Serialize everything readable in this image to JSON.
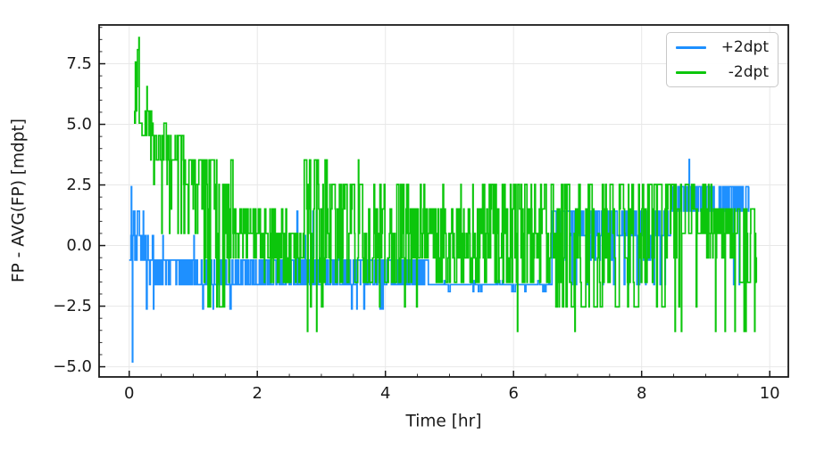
{
  "chart_data": {
    "type": "line",
    "title": "",
    "xlabel": "Time [hr]",
    "ylabel": "FP - AVG(FP) [mdpt]",
    "xlim": [
      -0.47,
      10.29
    ],
    "ylim": [
      -5.42,
      9.1
    ],
    "xticks": {
      "values": [
        0,
        2,
        4,
        6,
        8,
        10
      ],
      "labels": [
        "0",
        "2",
        "4",
        "6",
        "8",
        "10"
      ]
    },
    "yticks": {
      "values": [
        -5,
        -2.5,
        0,
        2.5,
        5,
        7.5
      ],
      "labels": [
        "−5.0",
        "−2.5",
        "0.0",
        "2.5",
        "5.0",
        "7.5"
      ]
    },
    "minor_tick_step": {
      "x": 0.5,
      "y": 0.5
    },
    "grid": true,
    "legend_position": "upper right",
    "colors": {
      "grid": "#e8e8e8",
      "spine": "#1a1a1a",
      "text": "#1a1a1a",
      "legend_border": "#c8c8c8"
    },
    "series": [
      {
        "name": "+2dpt",
        "color": "#1E90FF",
        "quant": {
          "ref": -0.6,
          "step": 1.01
        },
        "segments": [
          {
            "t0": 0.0,
            "t1": 0.05,
            "lo": -0.6,
            "hi": 0.41,
            "d": 1
          },
          {
            "t0": 0.05,
            "t1": 0.17,
            "lo": -0.6,
            "hi": 1.42,
            "d": 0.95
          },
          {
            "t0": 0.17,
            "t1": 0.4,
            "lo": -2.62,
            "hi": 0.41,
            "clo": -0.6,
            "chi": 0.41,
            "d": 0.8
          },
          {
            "t0": 0.4,
            "t1": 0.62,
            "lo": -1.61,
            "hi": 0.41,
            "clo": -1.61,
            "chi": -0.6,
            "d": 0.95
          },
          {
            "t0": 0.62,
            "t1": 1.2,
            "lo": -2.62,
            "hi": -0.6,
            "clo": -1.61,
            "chi": -0.6,
            "d": 0.88
          },
          {
            "t0": 1.2,
            "t1": 2.05,
            "lo": -2.62,
            "hi": -0.6,
            "clo": -1.61,
            "chi": -0.6,
            "d": 0.96
          },
          {
            "t0": 2.05,
            "t1": 2.62,
            "lo": -1.61,
            "hi": -0.6,
            "d": 0.97
          },
          {
            "t0": 2.62,
            "t1": 3.35,
            "lo": -2.62,
            "hi": 1.42,
            "clo": -1.61,
            "chi": -0.6,
            "d": 0.85
          },
          {
            "t0": 3.35,
            "t1": 4.1,
            "lo": -2.62,
            "hi": -0.6,
            "clo": -1.61,
            "chi": -0.6,
            "d": 0.9
          },
          {
            "t0": 4.1,
            "t1": 4.67,
            "lo": -1.61,
            "hi": -0.6,
            "d": 1
          },
          {
            "t0": 4.67,
            "t1": 6.6,
            "lo": -1.9,
            "hi": -1.45,
            "d": 0.95
          },
          {
            "t0": 6.6,
            "t1": 7.15,
            "lo": -1.61,
            "hi": 1.42,
            "clo": 0.41,
            "chi": 1.42,
            "d": 0.75
          },
          {
            "t0": 7.15,
            "t1": 8.45,
            "lo": -1.9,
            "hi": 1.42,
            "clo": 0.41,
            "chi": 1.42,
            "d": 0.88
          },
          {
            "t0": 8.45,
            "t1": 9.1,
            "lo": 1.42,
            "hi": 2.43,
            "d": 0.95
          },
          {
            "t0": 9.1,
            "t1": 9.68,
            "lo": 1.42,
            "hi": 2.43,
            "d": 0.92
          }
        ],
        "spikes": [
          [
            0.03,
            2.43
          ],
          [
            0.05,
            -4.8
          ],
          [
            0.13,
            1.42
          ],
          [
            0.21,
            1.42
          ],
          [
            1.0,
            0.41
          ],
          [
            6.83,
            2.43
          ],
          [
            8.74,
            3.55
          ],
          [
            9.42,
            -1.61
          ],
          [
            9.52,
            -1.61
          ]
        ]
      },
      {
        "name": "-2dpt",
        "color": "#0CC60C",
        "quant": {
          "ref": 0.5,
          "step": 1.01
        },
        "segments": [
          {
            "t0": 0.08,
            "t1": 0.2,
            "lo": 4.54,
            "hi": 8.58,
            "clo": 5.05,
            "chi": 8.08,
            "d": 0.8
          },
          {
            "t0": 0.2,
            "t1": 0.35,
            "lo": 3.53,
            "hi": 6.56,
            "clo": 4.54,
            "chi": 6.06,
            "d": 0.8
          },
          {
            "t0": 0.35,
            "t1": 0.58,
            "lo": 2.52,
            "hi": 5.55,
            "clo": 3.53,
            "chi": 5.05,
            "d": 0.82
          },
          {
            "t0": 0.58,
            "t1": 0.85,
            "lo": 0.5,
            "hi": 4.54,
            "clo": 3.53,
            "chi": 4.54,
            "d": 0.78
          },
          {
            "t0": 0.85,
            "t1": 1.17,
            "lo": -0.51,
            "hi": 3.53,
            "clo": 2.52,
            "chi": 3.53,
            "d": 0.82
          },
          {
            "t0": 1.17,
            "t1": 1.62,
            "lo": -2.53,
            "hi": 3.53,
            "d": 0.65
          },
          {
            "t0": 1.62,
            "t1": 2.05,
            "lo": -0.51,
            "hi": 1.51,
            "d": 1
          },
          {
            "t0": 2.05,
            "t1": 2.48,
            "lo": -1.52,
            "hi": 1.51,
            "d": 1
          },
          {
            "t0": 2.48,
            "t1": 2.7,
            "lo": -1.52,
            "hi": 0.5,
            "d": 0.9
          },
          {
            "t0": 2.7,
            "t1": 3.1,
            "lo": -2.53,
            "hi": 3.53,
            "d": 0.6
          },
          {
            "t0": 3.1,
            "t1": 3.7,
            "lo": -2.53,
            "hi": 3.53,
            "clo": -1.52,
            "chi": 2.52,
            "d": 0.7
          },
          {
            "t0": 3.7,
            "t1": 4.65,
            "lo": -2.53,
            "hi": 2.52,
            "clo": -1.52,
            "chi": 2.52,
            "d": 0.9
          },
          {
            "t0": 4.65,
            "t1": 5.5,
            "lo": -1.9,
            "hi": 2.52,
            "clo": -1.52,
            "chi": 1.51,
            "d": 0.95
          },
          {
            "t0": 5.5,
            "t1": 6.65,
            "lo": -1.9,
            "hi": 2.52,
            "clo": -1.52,
            "chi": 2.52,
            "d": 0.96
          },
          {
            "t0": 6.65,
            "t1": 8.45,
            "lo": -2.53,
            "hi": 2.52,
            "d": 0.55
          },
          {
            "t0": 8.45,
            "t1": 9.0,
            "lo": -2.53,
            "hi": 2.52,
            "clo": 0.5,
            "chi": 2.52,
            "d": 0.6
          },
          {
            "t0": 9.0,
            "t1": 9.5,
            "lo": -0.51,
            "hi": 2.52,
            "clo": -0.51,
            "chi": 1.51,
            "d": 0.95
          },
          {
            "t0": 9.5,
            "t1": 9.8,
            "lo": -3.54,
            "hi": 1.51,
            "clo": -1.52,
            "chi": 1.51,
            "d": 0.6
          }
        ],
        "spikes": [
          [
            0.15,
            8.58
          ],
          [
            0.5,
            0.5
          ],
          [
            0.62,
            0.5
          ],
          [
            0.78,
            0.5
          ],
          [
            1.05,
            0.5
          ],
          [
            2.78,
            -3.54
          ],
          [
            2.92,
            -3.54
          ],
          [
            6.06,
            -3.54
          ],
          [
            6.95,
            -3.54
          ],
          [
            8.52,
            -3.54
          ],
          [
            8.62,
            -3.54
          ],
          [
            9.15,
            -3.54
          ],
          [
            9.3,
            -3.54
          ],
          [
            9.45,
            -3.54
          ],
          [
            9.62,
            -3.54
          ],
          [
            9.72,
            -3.54
          ]
        ]
      }
    ]
  }
}
